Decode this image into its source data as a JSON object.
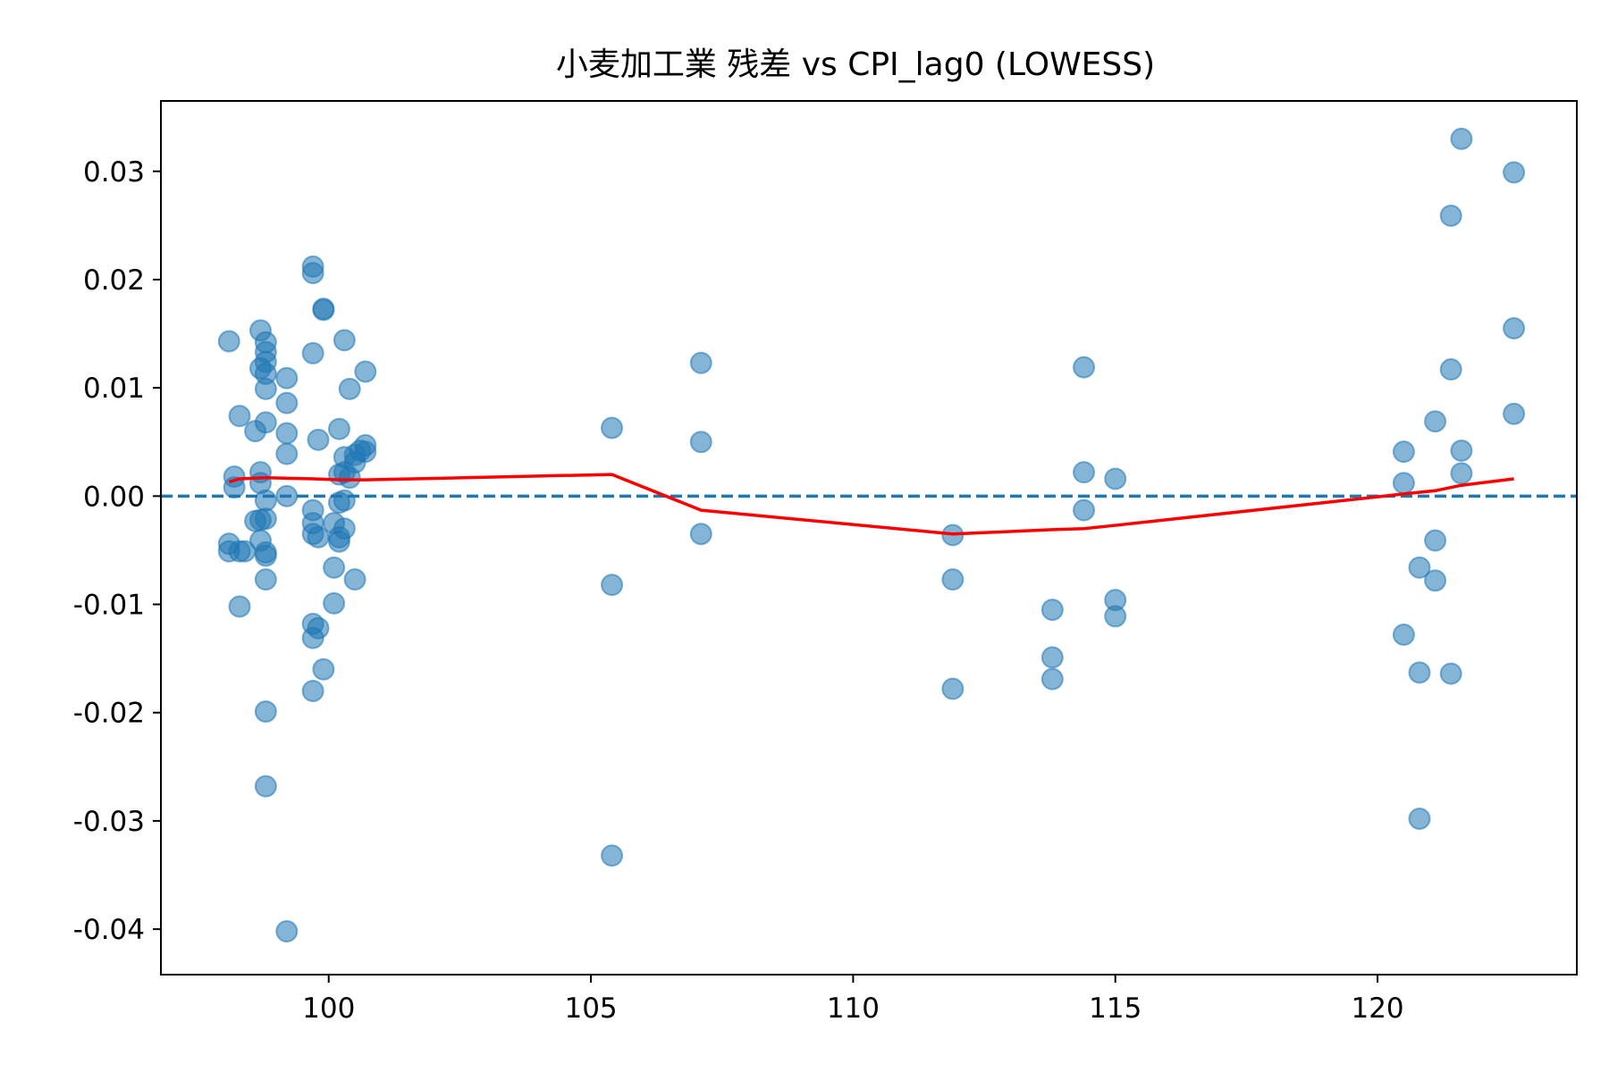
{
  "chart_data": {
    "type": "scatter",
    "title": "小麦加工業 残差 vs CPI_lag0 (LOWESS)",
    "xlabel": "",
    "ylabel": "",
    "xlim": [
      96.8,
      123.8
    ],
    "ylim": [
      -0.0442,
      0.0365
    ],
    "x_ticks": [
      100,
      105,
      110,
      115,
      120
    ],
    "x_tick_labels": [
      "100",
      "105",
      "110",
      "115",
      "120"
    ],
    "y_ticks": [
      0.03,
      0.02,
      0.01,
      0.0,
      -0.01,
      -0.02,
      -0.03,
      -0.04
    ],
    "y_tick_labels": [
      "0.03",
      "0.02",
      "0.01",
      "0.00",
      "-0.01",
      "-0.02",
      "-0.03",
      "-0.04"
    ],
    "grid": false,
    "legend": "none",
    "colors": {
      "points": "#1f77b4",
      "zero_line": "#1f77b4",
      "lowess": "#ff0000"
    },
    "reference_line": {
      "y": 0.0,
      "style": "dashed"
    },
    "points": [
      [
        98.1,
        0.0143
      ],
      [
        98.1,
        -0.0044
      ],
      [
        98.1,
        -0.0051
      ],
      [
        98.2,
        0.0018
      ],
      [
        98.2,
        0.0008
      ],
      [
        98.3,
        -0.0051
      ],
      [
        98.3,
        -0.0102
      ],
      [
        98.3,
        0.0074
      ],
      [
        98.4,
        -0.0051
      ],
      [
        98.6,
        0.006
      ],
      [
        98.6,
        -0.0023
      ],
      [
        98.7,
        0.0153
      ],
      [
        98.7,
        0.0118
      ],
      [
        98.7,
        0.0022
      ],
      [
        98.7,
        0.0012
      ],
      [
        98.7,
        -0.0041
      ],
      [
        98.7,
        -0.0022
      ],
      [
        98.8,
        0.0142
      ],
      [
        98.8,
        0.0133
      ],
      [
        98.8,
        0.0124
      ],
      [
        98.8,
        0.0113
      ],
      [
        98.8,
        0.0099
      ],
      [
        98.8,
        0.0068
      ],
      [
        98.8,
        -0.0004
      ],
      [
        98.8,
        -0.0021
      ],
      [
        98.8,
        -0.0052
      ],
      [
        98.8,
        -0.0055
      ],
      [
        98.8,
        -0.0077
      ],
      [
        98.8,
        -0.0199
      ],
      [
        98.8,
        -0.0268
      ],
      [
        99.2,
        0.0109
      ],
      [
        99.2,
        0.0086
      ],
      [
        99.2,
        0.0058
      ],
      [
        99.2,
        0.0039
      ],
      [
        99.2,
        0.0
      ],
      [
        99.2,
        -0.0402
      ],
      [
        99.7,
        0.0212
      ],
      [
        99.7,
        0.0206
      ],
      [
        99.7,
        0.0132
      ],
      [
        99.7,
        -0.0013
      ],
      [
        99.7,
        -0.0025
      ],
      [
        99.7,
        -0.0035
      ],
      [
        99.7,
        -0.0118
      ],
      [
        99.7,
        -0.0131
      ],
      [
        99.7,
        -0.018
      ],
      [
        99.8,
        0.0052
      ],
      [
        99.8,
        -0.0038
      ],
      [
        99.8,
        -0.0122
      ],
      [
        99.9,
        0.0173
      ],
      [
        99.9,
        0.0172
      ],
      [
        99.9,
        -0.016
      ],
      [
        100.1,
        -0.0025
      ],
      [
        100.1,
        -0.0066
      ],
      [
        100.1,
        -0.0099
      ],
      [
        100.2,
        0.0062
      ],
      [
        100.2,
        0.002
      ],
      [
        100.2,
        -0.0006
      ],
      [
        100.2,
        -0.0038
      ],
      [
        100.2,
        -0.0042
      ],
      [
        100.3,
        0.0144
      ],
      [
        100.3,
        0.0036
      ],
      [
        100.3,
        0.0022
      ],
      [
        100.3,
        -0.0004
      ],
      [
        100.3,
        -0.003
      ],
      [
        100.4,
        0.0099
      ],
      [
        100.4,
        0.0017
      ],
      [
        100.5,
        0.0038
      ],
      [
        100.5,
        0.0031
      ],
      [
        100.5,
        -0.0077
      ],
      [
        100.6,
        0.0042
      ],
      [
        100.7,
        0.0115
      ],
      [
        100.7,
        0.0047
      ],
      [
        100.7,
        0.0041
      ],
      [
        105.4,
        0.0063
      ],
      [
        105.4,
        -0.0082
      ],
      [
        105.4,
        -0.0332
      ],
      [
        107.1,
        0.0123
      ],
      [
        107.1,
        0.005
      ],
      [
        107.1,
        -0.0035
      ],
      [
        111.9,
        -0.0036
      ],
      [
        111.9,
        -0.0077
      ],
      [
        111.9,
        -0.0178
      ],
      [
        113.8,
        -0.0105
      ],
      [
        113.8,
        -0.0149
      ],
      [
        113.8,
        -0.0169
      ],
      [
        114.4,
        0.0119
      ],
      [
        114.4,
        0.0022
      ],
      [
        114.4,
        -0.0013
      ],
      [
        115.0,
        0.0016
      ],
      [
        115.0,
        -0.0096
      ],
      [
        115.0,
        -0.0111
      ],
      [
        120.5,
        0.0041
      ],
      [
        120.5,
        0.0012
      ],
      [
        120.5,
        -0.0128
      ],
      [
        120.8,
        -0.0066
      ],
      [
        120.8,
        -0.0163
      ],
      [
        120.8,
        -0.0298
      ],
      [
        121.1,
        0.0069
      ],
      [
        121.1,
        -0.0041
      ],
      [
        121.1,
        -0.0078
      ],
      [
        121.4,
        0.0259
      ],
      [
        121.4,
        0.0117
      ],
      [
        121.4,
        -0.0164
      ],
      [
        121.6,
        0.033
      ],
      [
        121.6,
        0.0042
      ],
      [
        121.6,
        0.0021
      ],
      [
        122.6,
        0.0299
      ],
      [
        122.6,
        0.0155
      ],
      [
        122.6,
        0.0076
      ]
    ],
    "lowess_line": [
      [
        98.1,
        0.0013
      ],
      [
        98.3,
        0.0016
      ],
      [
        98.8,
        0.0017
      ],
      [
        99.7,
        0.0016
      ],
      [
        100.2,
        0.0015
      ],
      [
        100.7,
        0.0015
      ],
      [
        105.4,
        0.002
      ],
      [
        107.1,
        -0.0013
      ],
      [
        111.9,
        -0.0035
      ],
      [
        113.8,
        -0.0031
      ],
      [
        114.4,
        -0.003
      ],
      [
        115.0,
        -0.0027
      ],
      [
        120.5,
        0.0002
      ],
      [
        121.1,
        0.0005
      ],
      [
        121.6,
        0.001
      ],
      [
        122.6,
        0.0016
      ]
    ]
  }
}
